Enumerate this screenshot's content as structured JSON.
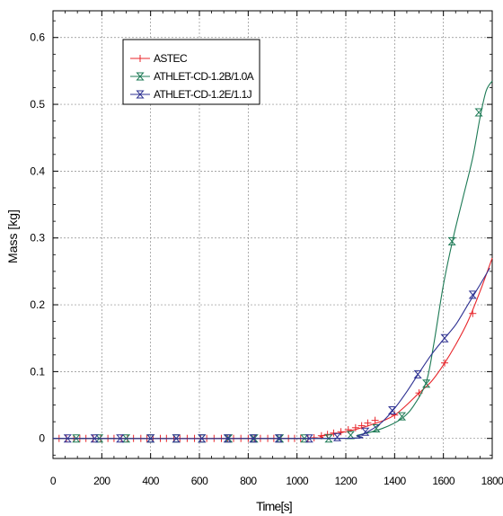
{
  "chart_data": {
    "type": "line",
    "title": "",
    "xlabel": "Time[s]",
    "ylabel": "Mass [kg]",
    "xlim": [
      0,
      1800
    ],
    "ylim": [
      -0.03,
      0.64
    ],
    "x_ticks": [
      0,
      200,
      400,
      600,
      800,
      1000,
      1200,
      1400,
      1600,
      1800
    ],
    "y_ticks": [
      0,
      0.1,
      0.2,
      0.3,
      0.4,
      0.5,
      0.6
    ],
    "x_tick_labels": [
      "0",
      "200",
      "400",
      "600",
      "800",
      "1000",
      "1200",
      "1400",
      "1600",
      "1800"
    ],
    "y_tick_labels": [
      "0",
      "0.1",
      "0.2",
      "0.3",
      "0.4",
      "0.5",
      "0.6"
    ],
    "grid": true,
    "legend_position": "top-left",
    "series": [
      {
        "name": "ASTEC",
        "color": "#e8262b",
        "marker": "plus",
        "curve": [
          [
            0,
            0
          ],
          [
            1000,
            0
          ],
          [
            1100,
            0.004
          ],
          [
            1200,
            0.01
          ],
          [
            1300,
            0.02
          ],
          [
            1400,
            0.035
          ],
          [
            1500,
            0.068
          ],
          [
            1550,
            0.085
          ],
          [
            1600,
            0.11
          ],
          [
            1650,
            0.14
          ],
          [
            1700,
            0.175
          ],
          [
            1750,
            0.22
          ],
          [
            1800,
            0.27
          ]
        ],
        "markers": [
          [
            25,
            0
          ],
          [
            55,
            0
          ],
          [
            85,
            0
          ],
          [
            110,
            0
          ],
          [
            135,
            0
          ],
          [
            165,
            0
          ],
          [
            195,
            0
          ],
          [
            225,
            0
          ],
          [
            250,
            0
          ],
          [
            280,
            0
          ],
          [
            305,
            0
          ],
          [
            330,
            0
          ],
          [
            360,
            0
          ],
          [
            385,
            0
          ],
          [
            410,
            0
          ],
          [
            440,
            0
          ],
          [
            465,
            0
          ],
          [
            495,
            0
          ],
          [
            520,
            0
          ],
          [
            550,
            0
          ],
          [
            580,
            0
          ],
          [
            605,
            0
          ],
          [
            630,
            0
          ],
          [
            660,
            0
          ],
          [
            690,
            0
          ],
          [
            715,
            0
          ],
          [
            740,
            0
          ],
          [
            770,
            0
          ],
          [
            800,
            0
          ],
          [
            825,
            0
          ],
          [
            850,
            0
          ],
          [
            880,
            0
          ],
          [
            905,
            0
          ],
          [
            935,
            0
          ],
          [
            965,
            0
          ],
          [
            990,
            0
          ],
          [
            1015,
            0
          ],
          [
            1045,
            0
          ],
          [
            1070,
            0.001
          ],
          [
            1100,
            0.004
          ],
          [
            1125,
            0.006
          ],
          [
            1150,
            0.008
          ],
          [
            1180,
            0.01
          ],
          [
            1210,
            0.013
          ],
          [
            1240,
            0.016
          ],
          [
            1265,
            0.019
          ],
          [
            1290,
            0.023
          ],
          [
            1320,
            0.027
          ],
          [
            1400,
            0.035
          ],
          [
            1500,
            0.068
          ],
          [
            1605,
            0.113
          ],
          [
            1720,
            0.187
          ]
        ]
      },
      {
        "name": "ATHLET-CD-1.2B/1.0A",
        "color": "#1d7a55",
        "marker": "hourglass",
        "curve": [
          [
            0,
            0
          ],
          [
            1150,
            0
          ],
          [
            1250,
            0.005
          ],
          [
            1350,
            0.015
          ],
          [
            1430,
            0.03
          ],
          [
            1480,
            0.05
          ],
          [
            1530,
            0.085
          ],
          [
            1560,
            0.14
          ],
          [
            1600,
            0.23
          ],
          [
            1640,
            0.3
          ],
          [
            1680,
            0.36
          ],
          [
            1720,
            0.42
          ],
          [
            1750,
            0.48
          ],
          [
            1775,
            0.52
          ],
          [
            1800,
            0.535
          ]
        ],
        "markers": [
          [
            95,
            0
          ],
          [
            190,
            0
          ],
          [
            300,
            0
          ],
          [
            400,
            0
          ],
          [
            505,
            0
          ],
          [
            610,
            0
          ],
          [
            720,
            0
          ],
          [
            825,
            0
          ],
          [
            930,
            0
          ],
          [
            1030,
            0
          ],
          [
            1130,
            0
          ],
          [
            1220,
            0.005
          ],
          [
            1325,
            0.015
          ],
          [
            1430,
            0.033
          ],
          [
            1530,
            0.082
          ],
          [
            1635,
            0.295
          ],
          [
            1745,
            0.488
          ]
        ]
      },
      {
        "name": "ATHLET-CD-1.2E/1.1J",
        "color": "#2e3192",
        "marker": "hourglass",
        "curve": [
          [
            0,
            0
          ],
          [
            1150,
            0
          ],
          [
            1250,
            0.004
          ],
          [
            1300,
            0.012
          ],
          [
            1350,
            0.025
          ],
          [
            1400,
            0.045
          ],
          [
            1450,
            0.07
          ],
          [
            1500,
            0.098
          ],
          [
            1550,
            0.125
          ],
          [
            1600,
            0.148
          ],
          [
            1650,
            0.17
          ],
          [
            1700,
            0.2
          ],
          [
            1750,
            0.23
          ],
          [
            1790,
            0.255
          ]
        ],
        "markers": [
          [
            60,
            0
          ],
          [
            170,
            0
          ],
          [
            275,
            0
          ],
          [
            400,
            0
          ],
          [
            505,
            0
          ],
          [
            610,
            0
          ],
          [
            715,
            0
          ],
          [
            820,
            0
          ],
          [
            925,
            0
          ],
          [
            1050,
            0
          ],
          [
            1165,
            0.002
          ],
          [
            1280,
            0.01
          ],
          [
            1390,
            0.042
          ],
          [
            1495,
            0.096
          ],
          [
            1605,
            0.15
          ],
          [
            1720,
            0.215
          ]
        ]
      }
    ]
  }
}
